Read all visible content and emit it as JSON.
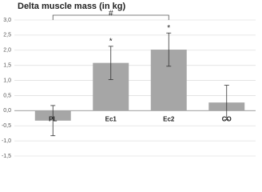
{
  "chart_data": {
    "type": "bar",
    "title": "Delta muscle mass (in kg)",
    "categories": [
      "PL",
      "Ec1",
      "Ec2",
      "CO"
    ],
    "values": [
      -0.33,
      1.58,
      2.02,
      0.27
    ],
    "errors": [
      0.5,
      0.55,
      0.55,
      0.57
    ],
    "color": "#a6a6a6",
    "ylim": [
      -1.5,
      3.0
    ],
    "yticks": [
      {
        "value": -1.5,
        "label": "-1,5"
      },
      {
        "value": -1.0,
        "label": "-1,0"
      },
      {
        "value": -0.5,
        "label": "-0,5"
      },
      {
        "value": 0,
        "label": "0,0"
      },
      {
        "value": 0.5,
        "label": "0,5"
      },
      {
        "value": 1.0,
        "label": "1,0"
      },
      {
        "value": 1.5,
        "label": "1,5"
      },
      {
        "value": 2.0,
        "label": "2,0"
      },
      {
        "value": 2.5,
        "label": "2,5"
      },
      {
        "value": 3.0,
        "label": "3,0"
      }
    ],
    "grid": true,
    "annotations": [
      "#",
      "*",
      "*"
    ]
  }
}
